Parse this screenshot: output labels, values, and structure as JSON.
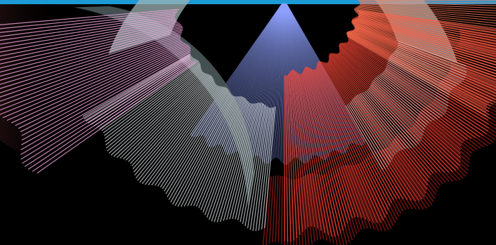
{
  "image": {
    "background": "#000000",
    "accent_bar_color": "#1b9ad6",
    "palette": {
      "slate": "#9fb3b3",
      "slate_dark": "#4f5d5f",
      "pale": "#e8eef0",
      "pink": "#f3a6df",
      "blue": "#8fa3ff",
      "red": "#ff4a3a",
      "orange": "#ff7a55",
      "maroon": "#7a1612"
    }
  }
}
